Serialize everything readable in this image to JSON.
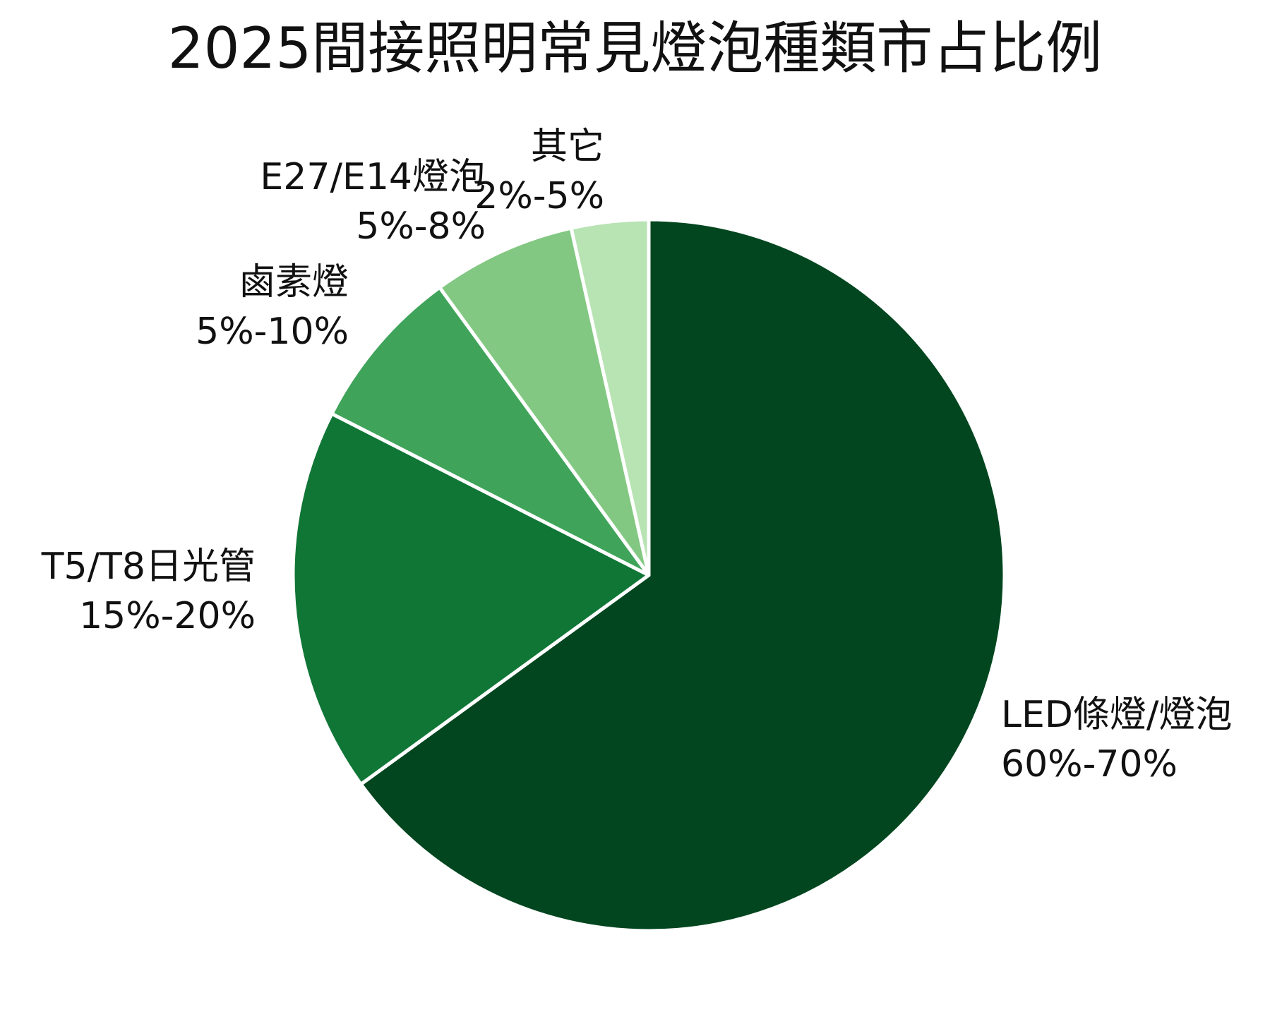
{
  "chart_data": {
    "type": "pie",
    "title": "2025間接照明常見燈泡種類市占比例",
    "start_angle_deg": 0,
    "direction": "clockwise",
    "slice_border_color": "#ffffff",
    "slices": [
      {
        "label": "LED條燈/燈泡",
        "value_text": "60%-70%",
        "value": 65,
        "color": "#01461f"
      },
      {
        "label": "T5/T8日光管",
        "value_text": "15%-20%",
        "value": 17.5,
        "color": "#107636"
      },
      {
        "label": "鹵素燈",
        "value_text": "5%-10%",
        "value": 7.5,
        "color": "#3fa45a"
      },
      {
        "label": "E27/E14燈泡",
        "value_text": "5%-8%",
        "value": 6.5,
        "color": "#82c882"
      },
      {
        "label": "其它",
        "value_text": "2%-5%",
        "value": 3.5,
        "color": "#b8e3b3"
      }
    ]
  }
}
